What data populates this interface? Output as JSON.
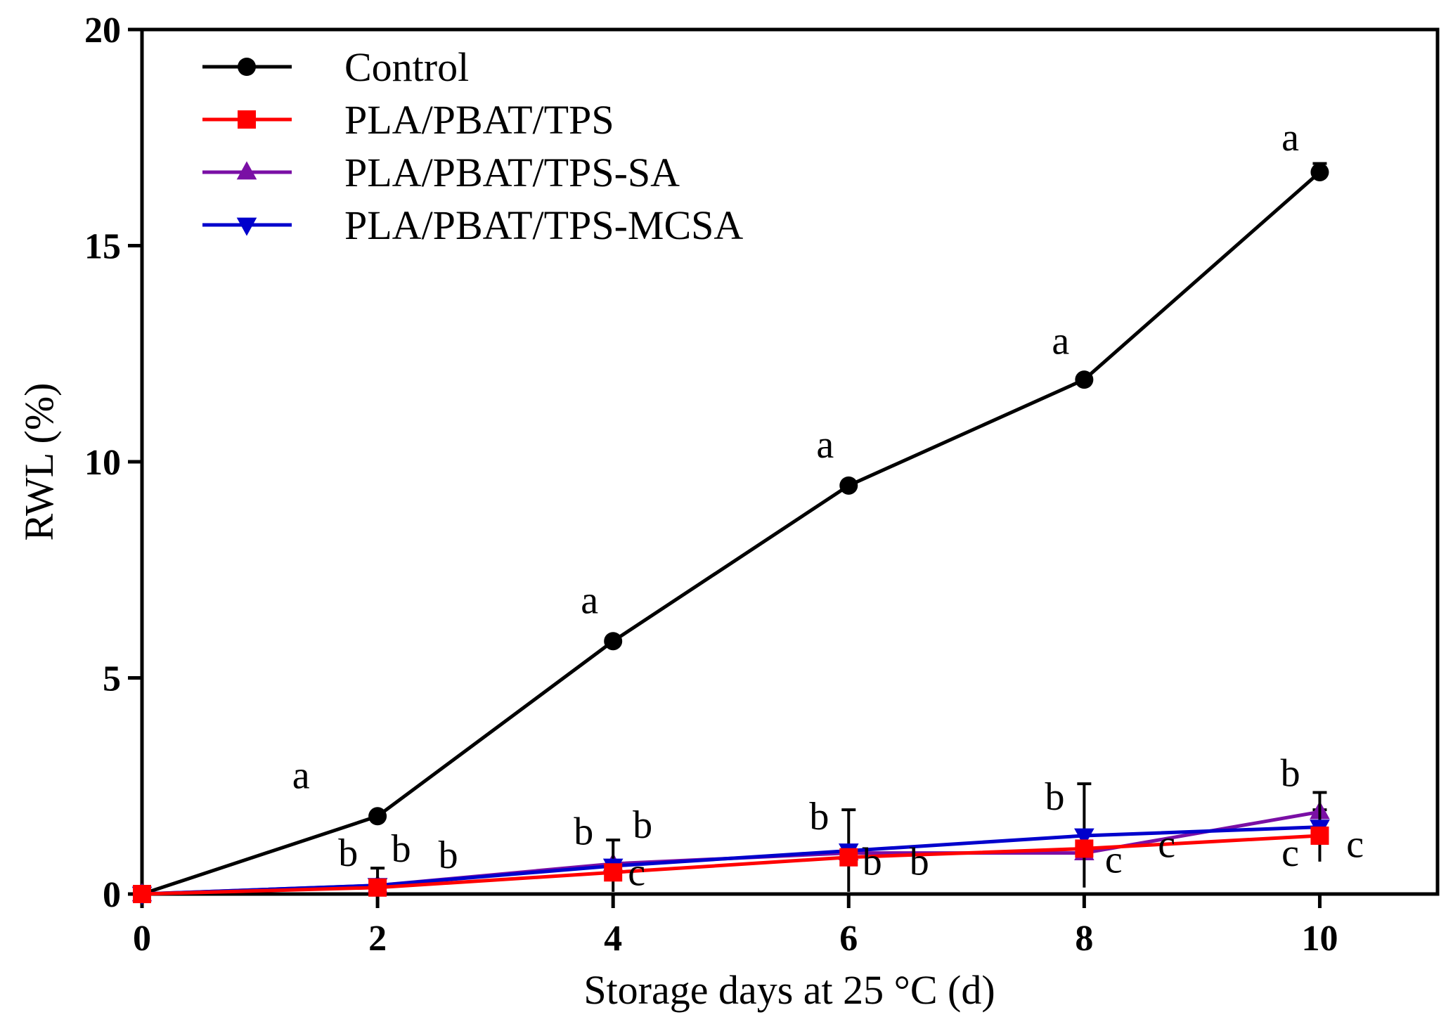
{
  "chart_data": {
    "type": "line",
    "title": "",
    "xlabel": "Storage days at 25 °C (d)",
    "ylabel": "RWL  (%)",
    "x": [
      0,
      2,
      4,
      6,
      8,
      10
    ],
    "xlim": [
      0,
      11
    ],
    "ylim": [
      0,
      20
    ],
    "xticks": [
      "0",
      "2",
      "4",
      "6",
      "8",
      "10"
    ],
    "yticks": [
      "0",
      "5",
      "10",
      "15",
      "20"
    ],
    "grid": false,
    "legend_position": "top-left",
    "series": [
      {
        "name": "Control",
        "color": "#000000",
        "marker": "circle",
        "values": [
          0,
          1.8,
          5.85,
          9.45,
          11.9,
          16.7
        ],
        "error": [
          0,
          0.05,
          0.05,
          0.05,
          0.05,
          0.2
        ]
      },
      {
        "name": "PLA/PBAT/TPS",
        "color": "#ff0000",
        "marker": "square",
        "values": [
          0,
          0.15,
          0.5,
          0.85,
          1.05,
          1.35
        ],
        "error": [
          0,
          0.05,
          0.05,
          0.05,
          0.05,
          0.05
        ]
      },
      {
        "name": "PLA/PBAT/TPS-SA",
        "color": "#7a0fa5",
        "marker": "triangle-up",
        "values": [
          0,
          0.2,
          0.7,
          0.95,
          0.95,
          1.9
        ],
        "error": [
          0,
          0.05,
          0.05,
          0.05,
          0.05,
          0.05
        ]
      },
      {
        "name": "PLA/PBAT/TPS-MCSA",
        "color": "#0000cc",
        "marker": "triangle-down",
        "values": [
          0,
          0.2,
          0.65,
          1.0,
          1.35,
          1.55
        ],
        "error": [
          0,
          0.4,
          0.6,
          0.95,
          1.2,
          0.8
        ]
      }
    ],
    "annotations": [
      {
        "text": "a",
        "x": 1.35,
        "y": 2.45
      },
      {
        "text": "a",
        "x": 3.8,
        "y": 6.5
      },
      {
        "text": "a",
        "x": 5.8,
        "y": 10.1
      },
      {
        "text": "a",
        "x": 7.8,
        "y": 12.5
      },
      {
        "text": "a",
        "x": 9.75,
        "y": 17.2
      },
      {
        "text": "b",
        "x": 1.75,
        "y": 0.65
      },
      {
        "text": "b",
        "x": 2.2,
        "y": 0.75
      },
      {
        "text": "b",
        "x": 2.6,
        "y": 0.6
      },
      {
        "text": "b",
        "x": 3.75,
        "y": 1.15
      },
      {
        "text": "b",
        "x": 4.25,
        "y": 1.3
      },
      {
        "text": "c",
        "x": 4.2,
        "y": 0.2
      },
      {
        "text": "b",
        "x": 5.75,
        "y": 1.5
      },
      {
        "text": "b",
        "x": 6.2,
        "y": 0.45
      },
      {
        "text": "b",
        "x": 6.6,
        "y": 0.45
      },
      {
        "text": "b",
        "x": 7.75,
        "y": 1.95
      },
      {
        "text": "c",
        "x": 8.25,
        "y": 0.5
      },
      {
        "text": "c",
        "x": 8.7,
        "y": 0.85
      },
      {
        "text": "b",
        "x": 9.75,
        "y": 2.5
      },
      {
        "text": "c",
        "x": 9.75,
        "y": 0.65
      },
      {
        "text": "c",
        "x": 10.3,
        "y": 0.85
      }
    ]
  }
}
